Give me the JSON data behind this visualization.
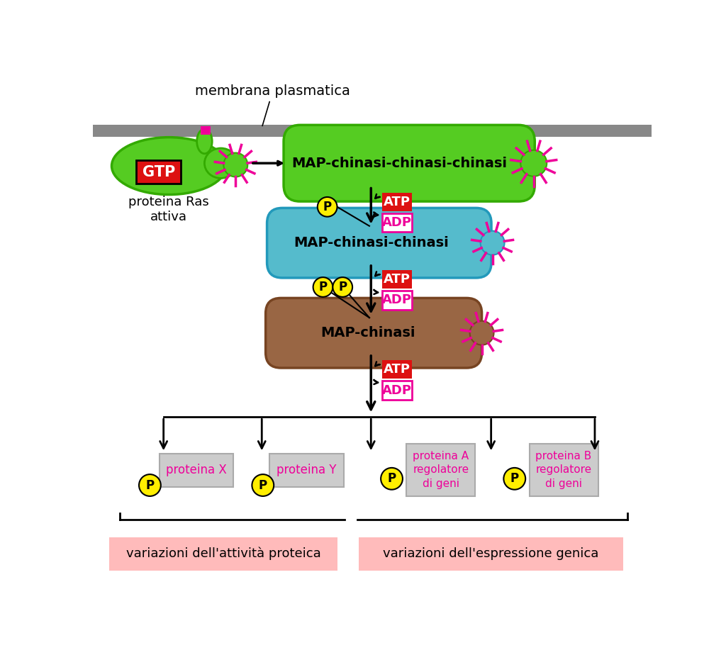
{
  "bg_color": "#ffffff",
  "membrane_color": "#888888",
  "green_color": "#55cc22",
  "green_dark": "#33aa00",
  "teal_color": "#55bbcc",
  "teal_dark": "#2299bb",
  "brown_color": "#996644",
  "brown_dark": "#774422",
  "yellow_color": "#ffee00",
  "red_color": "#dd1111",
  "magenta_color": "#ee0099",
  "pink_bg": "#ffbbbb",
  "gray_box": "#cccccc",
  "gray_box_edge": "#aaaaaa",
  "title_membrane": "membrana plasmatica",
  "label_ras": "proteina Ras\nattiva",
  "label_map3": "MAP-chinasi-chinasi-chinasi",
  "label_map2": "MAP-chinasi-chinasi",
  "label_map1": "MAP-chinasi",
  "label_atp": "ATP",
  "label_adp": "ADP",
  "label_p": "P",
  "label_gtp": "GTP",
  "label_protX": "proteina X",
  "label_protY": "proteina Y",
  "label_protA": "proteina A\nregolatore\ndi geni",
  "label_protB": "proteina B\nregolatore\ndi geni",
  "label_bottom_left": "variazioni dell'attività proteica",
  "label_bottom_right": "variazioni dell'espressione genica"
}
